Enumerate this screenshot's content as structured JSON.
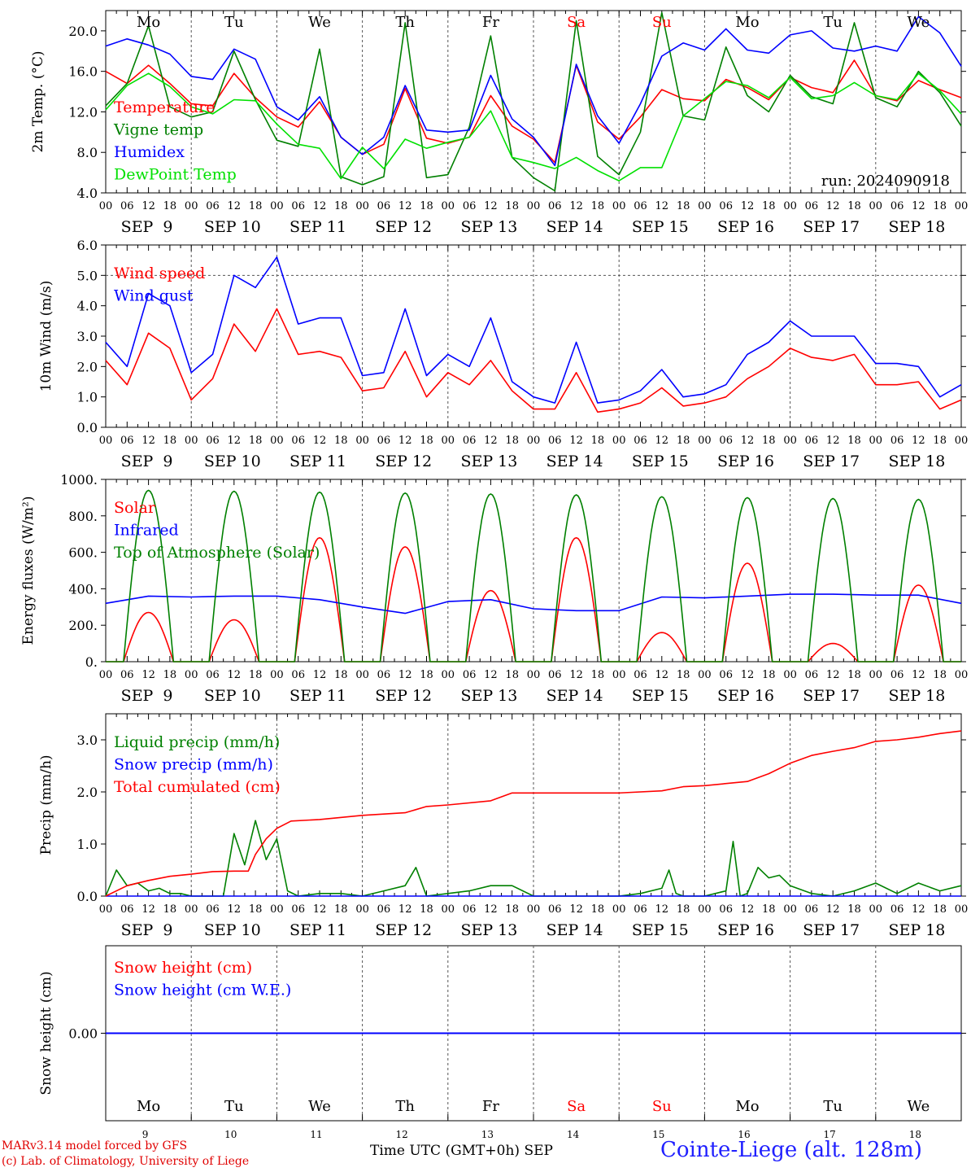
{
  "chart_data": {
    "type": "line",
    "run_label": "run: 2024090918",
    "hour_ticks": [
      "00",
      "06",
      "12",
      "18"
    ],
    "days": [
      {
        "weekday": "Mo",
        "date": "SEP  9",
        "num": "9",
        "weekend": false
      },
      {
        "weekday": "Tu",
        "date": "SEP 10",
        "num": "10",
        "weekend": false
      },
      {
        "weekday": "We",
        "date": "SEP 11",
        "num": "11",
        "weekend": false
      },
      {
        "weekday": "Th",
        "date": "SEP 12",
        "num": "12",
        "weekend": false
      },
      {
        "weekday": "Fr",
        "date": "SEP 13",
        "num": "13",
        "weekend": false
      },
      {
        "weekday": "Sa",
        "date": "SEP 14",
        "num": "14",
        "weekend": true
      },
      {
        "weekday": "Su",
        "date": "SEP 15",
        "num": "15",
        "weekend": true
      },
      {
        "weekday": "Mo",
        "date": "SEP 16",
        "num": "16",
        "weekend": false
      },
      {
        "weekday": "Tu",
        "date": "SEP 17",
        "num": "17",
        "weekend": false
      },
      {
        "weekday": "We",
        "date": "SEP 18",
        "num": "18",
        "weekend": false
      }
    ],
    "panels": [
      {
        "id": "temp",
        "ylabel": "2m Temp. (°C)",
        "ylim": [
          4,
          22
        ],
        "yticks": [
          4,
          8,
          12,
          16,
          20
        ],
        "ytick_labels": [
          "4.0",
          "8.0",
          "12.0",
          "16.0",
          "20.0"
        ],
        "series": [
          {
            "name": "Temperature",
            "color": "#ff0000",
            "x": [
              0,
              6,
              12,
              18,
              24,
              30,
              36,
              42,
              48,
              54,
              60,
              66,
              72,
              78,
              84,
              90,
              96,
              102,
              108,
              114,
              120,
              126,
              132,
              138,
              144,
              150,
              156,
              162,
              168,
              174,
              180,
              186,
              192,
              198,
              204,
              210,
              216,
              222,
              228,
              234,
              240
            ],
            "y": [
              16,
              14.8,
              16.6,
              14.8,
              12.8,
              12.6,
              15.8,
              13.4,
              11.5,
              10.5,
              13,
              9.5,
              7.8,
              8.8,
              14.3,
              9.4,
              8.9,
              9.5,
              13.6,
              10.6,
              9.3,
              7,
              16.6,
              11,
              9.3,
              11.5,
              14.2,
              13.3,
              13.1,
              15.2,
              14.4,
              13.2,
              15.4,
              14.4,
              13.9,
              17.1,
              13.6,
              13.1,
              15.1,
              14.2,
              13.4
            ]
          },
          {
            "name": "Vigne temp",
            "color": "#008000",
            "x": [
              0,
              6,
              12,
              18,
              24,
              30,
              36,
              42,
              48,
              54,
              60,
              66,
              72,
              78,
              84,
              90,
              96,
              102,
              108,
              114,
              120,
              126,
              132,
              138,
              144,
              150,
              156,
              162,
              168,
              174,
              180,
              186,
              192,
              198,
              204,
              210,
              216,
              222,
              228,
              234,
              240
            ],
            "y": [
              12.6,
              14.8,
              20.5,
              12.5,
              11.5,
              12,
              18,
              13.2,
              9.2,
              8.6,
              18.2,
              5.6,
              4.8,
              5.6,
              20.8,
              5.5,
              5.8,
              10.5,
              19.5,
              7.5,
              5.5,
              4.2,
              21,
              7.6,
              5.8,
              10,
              21.8,
              11.6,
              11.2,
              18.4,
              13.6,
              12,
              15.6,
              13.5,
              12.8,
              20.8,
              13.4,
              12.5,
              16,
              13.9,
              10.6
            ]
          },
          {
            "name": "Humidex",
            "color": "#0000ff",
            "x": [
              0,
              6,
              12,
              18,
              24,
              30,
              36,
              42,
              48,
              54,
              60,
              66,
              72,
              78,
              84,
              90,
              96,
              102,
              108,
              114,
              120,
              126,
              132,
              138,
              144,
              150,
              156,
              162,
              168,
              174,
              180,
              186,
              192,
              198,
              204,
              210,
              216,
              222,
              228,
              234,
              240
            ],
            "y": [
              18.5,
              19.2,
              18.6,
              17.7,
              15.5,
              15.2,
              18.2,
              17.2,
              12.5,
              11.2,
              13.5,
              9.5,
              7.8,
              9.5,
              14.6,
              10.2,
              10,
              10.2,
              15.6,
              11.3,
              9.5,
              6.7,
              16.7,
              11.6,
              8.9,
              12.8,
              17.5,
              18.8,
              18.1,
              20.2,
              18.1,
              17.8,
              19.6,
              20,
              18.3,
              18,
              18.5,
              18,
              21.4,
              19.8,
              16.5
            ]
          },
          {
            "name": "DewPoint Temp",
            "color": "#00e000",
            "x": [
              0,
              6,
              12,
              18,
              24,
              30,
              36,
              42,
              48,
              54,
              60,
              66,
              72,
              78,
              84,
              90,
              96,
              102,
              108,
              114,
              120,
              126,
              132,
              138,
              144,
              150,
              156,
              162,
              168,
              174,
              180,
              186,
              192,
              198,
              204,
              210,
              216,
              222,
              228,
              234,
              240
            ],
            "y": [
              12.2,
              14.6,
              15.8,
              14.5,
              12.5,
              11.8,
              13.2,
              13.1,
              10.8,
              8.8,
              8.4,
              5.4,
              8.5,
              6.4,
              9.3,
              8.4,
              9,
              9.5,
              12.1,
              7.5,
              7,
              6.4,
              7.5,
              6.2,
              5.2,
              6.5,
              6.5,
              11.6,
              13.3,
              15,
              14.6,
              13.4,
              15.4,
              13.3,
              13.6,
              14.9,
              13.6,
              13.2,
              15.8,
              14.1,
              11.8
            ]
          }
        ]
      },
      {
        "id": "wind",
        "ylabel": "10m Wind (m/s)",
        "ylim": [
          0,
          6
        ],
        "yticks": [
          0,
          1,
          2,
          3,
          4,
          5,
          6
        ],
        "ytick_labels": [
          "0.0",
          "1.0",
          "2.0",
          "3.0",
          "4.0",
          "5.0",
          "6.0"
        ],
        "dashed_level": 5,
        "series": [
          {
            "name": "Wind speed",
            "color": "#ff0000",
            "x": [
              0,
              6,
              12,
              18,
              24,
              30,
              36,
              42,
              48,
              54,
              60,
              66,
              72,
              78,
              84,
              90,
              96,
              102,
              108,
              114,
              120,
              126,
              132,
              138,
              144,
              150,
              156,
              162,
              168,
              174,
              180,
              186,
              192,
              198,
              204,
              210,
              216,
              222,
              228,
              234,
              240
            ],
            "y": [
              2.2,
              1.4,
              3.1,
              2.6,
              0.9,
              1.6,
              3.4,
              2.5,
              3.9,
              2.4,
              2.5,
              2.3,
              1.2,
              1.3,
              2.5,
              1.0,
              1.8,
              1.4,
              2.2,
              1.2,
              0.6,
              0.6,
              1.8,
              0.5,
              0.6,
              0.8,
              1.3,
              0.7,
              0.8,
              1.0,
              1.6,
              2.0,
              2.6,
              2.3,
              2.2,
              2.4,
              1.4,
              1.4,
              1.5,
              0.6,
              0.9
            ]
          },
          {
            "name": "Wind gust",
            "color": "#0000ff",
            "x": [
              0,
              6,
              12,
              18,
              24,
              30,
              36,
              42,
              48,
              54,
              60,
              66,
              72,
              78,
              84,
              90,
              96,
              102,
              108,
              114,
              120,
              126,
              132,
              138,
              144,
              150,
              156,
              162,
              168,
              174,
              180,
              186,
              192,
              198,
              204,
              210,
              216,
              222,
              228,
              234,
              240
            ],
            "y": [
              2.8,
              2.0,
              4.4,
              4.0,
              1.8,
              2.4,
              5.0,
              4.6,
              5.6,
              3.4,
              3.6,
              3.6,
              1.7,
              1.8,
              3.9,
              1.7,
              2.4,
              2.0,
              3.6,
              1.5,
              1.0,
              0.8,
              2.8,
              0.8,
              0.9,
              1.2,
              1.9,
              1.0,
              1.1,
              1.4,
              2.4,
              2.8,
              3.5,
              3.0,
              3.0,
              3.0,
              2.1,
              2.1,
              2.0,
              1.0,
              1.4
            ]
          }
        ]
      },
      {
        "id": "energy",
        "ylabel": "Energy fluxes (W/m²)",
        "ylim": [
          0,
          1000
        ],
        "yticks": [
          0,
          200,
          400,
          600,
          800,
          1000
        ],
        "ytick_labels": [
          "0.",
          "200.",
          "400.",
          "600.",
          "800.",
          "1000."
        ],
        "series": [
          {
            "name": "Solar",
            "color": "#ff0000",
            "day_peaks": [
              270,
              230,
              680,
              630,
              390,
              680,
              160,
              540,
              100,
              420
            ]
          },
          {
            "name": "Infrared",
            "color": "#0000ff",
            "x": [
              0,
              12,
              24,
              36,
              48,
              60,
              72,
              84,
              96,
              108,
              120,
              132,
              144,
              156,
              168,
              180,
              192,
              204,
              216,
              228,
              240
            ],
            "y": [
              320,
              360,
              355,
              360,
              360,
              340,
              300,
              265,
              330,
              340,
              290,
              280,
              280,
              355,
              350,
              360,
              370,
              370,
              365,
              365,
              320
            ]
          },
          {
            "name": "Top of Atmosphere (Solar)",
            "color": "#008000",
            "day_peaks": [
              940,
              935,
              930,
              925,
              920,
              915,
              905,
              900,
              895,
              890
            ]
          }
        ]
      },
      {
        "id": "precip",
        "ylabel": "Precip (mm/h)",
        "ylim": [
          0,
          3.5
        ],
        "yticks": [
          0,
          1,
          2,
          3
        ],
        "ytick_labels": [
          "0.0",
          "1.0",
          "2.0",
          "3.0"
        ],
        "series": [
          {
            "name": "Liquid precip (mm/h)",
            "color": "#008000",
            "x": [
              0,
              3,
              6,
              9,
              12,
              15,
              18,
              21,
              24,
              33,
              36,
              39,
              42,
              45,
              48,
              51,
              54,
              60,
              66,
              72,
              78,
              84,
              87,
              90,
              96,
              102,
              108,
              114,
              120,
              126,
              132,
              138,
              144,
              150,
              156,
              158,
              160,
              162,
              168,
              174,
              176,
              178,
              180,
              183,
              186,
              189,
              192,
              198,
              204,
              210,
              216,
              222,
              228,
              234,
              240
            ],
            "y": [
              0,
              0.5,
              0.2,
              0.25,
              0.1,
              0.15,
              0.05,
              0.05,
              0,
              0,
              1.2,
              0.6,
              1.45,
              0.7,
              1.1,
              0.1,
              0,
              0.05,
              0.05,
              0,
              0.1,
              0.2,
              0.55,
              0,
              0.05,
              0.1,
              0.2,
              0.2,
              0,
              0,
              0,
              0,
              0,
              0.05,
              0.15,
              0.5,
              0.05,
              0,
              0,
              0.1,
              1.05,
              0,
              0.05,
              0.55,
              0.35,
              0.4,
              0.2,
              0.05,
              0,
              0.1,
              0.25,
              0.05,
              0.25,
              0.1,
              0.2
            ]
          },
          {
            "name": "Snow precip (mm/h)",
            "color": "#0000ff",
            "x": [
              0,
              240
            ],
            "y": [
              0,
              0
            ]
          },
          {
            "name": "Total cumulated (cm)",
            "color": "#ff0000",
            "x": [
              0,
              6,
              12,
              18,
              24,
              30,
              36,
              40,
              42,
              45,
              48,
              52,
              60,
              72,
              84,
              90,
              96,
              108,
              114,
              120,
              132,
              144,
              156,
              162,
              168,
              180,
              186,
              192,
              198,
              204,
              210,
              216,
              222,
              228,
              234,
              240
            ],
            "y": [
              0,
              0.2,
              0.3,
              0.38,
              0.42,
              0.47,
              0.48,
              0.48,
              0.8,
              1.1,
              1.3,
              1.44,
              1.47,
              1.55,
              1.6,
              1.72,
              1.75,
              1.83,
              1.98,
              1.98,
              1.98,
              1.98,
              2.02,
              2.1,
              2.12,
              2.2,
              2.35,
              2.55,
              2.7,
              2.78,
              2.85,
              2.97,
              3.0,
              3.05,
              3.12,
              3.17
            ]
          }
        ]
      },
      {
        "id": "snow",
        "ylabel": "Snow height (cm)",
        "ylim": [
          -1,
          1
        ],
        "yticks": [
          0
        ],
        "ytick_labels": [
          "0.00"
        ],
        "series": [
          {
            "name": "Snow height (cm)",
            "color": "#ff0000",
            "x": [
              0,
              240
            ],
            "y": [
              0,
              0
            ]
          },
          {
            "name": "Snow height (cm W.E.)",
            "color": "#0000ff",
            "x": [
              0,
              240
            ],
            "y": [
              0,
              0
            ]
          }
        ]
      }
    ]
  },
  "footer": {
    "credit_line1": "MARv3.14 model forced by GFS",
    "credit_line2": "(c) Lab. of Climatology, University of Liege",
    "x_title": "Time UTC (GMT+0h) SEP",
    "station": "Cointe-Liege (alt. 128m)"
  }
}
